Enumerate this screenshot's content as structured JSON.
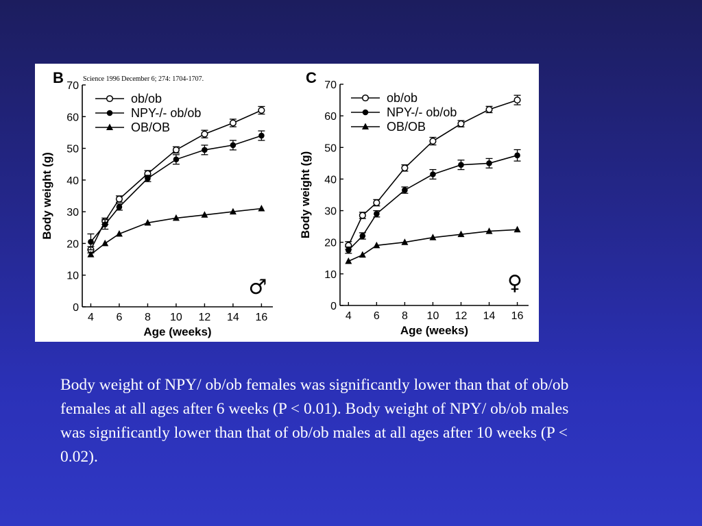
{
  "citation": "Science 1996 December 6; 274: 1704-1707.",
  "caption": "Body weight of NPY/ ob/ob females was significantly lower than that of ob/ob females at all ages after 6 weeks (P < 0.01). Body weight of NPY/ ob/ob males was significantly lower than that of ob/ob males at all ages after 10 weeks (P < 0.02).",
  "chart_data": [
    {
      "type": "line",
      "panel_label": "B",
      "sex_symbol": "♂",
      "xlabel": "Age (weeks)",
      "ylabel": "Body weight (g)",
      "xlim": [
        3.4,
        16.8
      ],
      "ylim": [
        0,
        70
      ],
      "xticks": [
        4,
        6,
        8,
        10,
        12,
        14,
        16
      ],
      "yticks": [
        0,
        10,
        20,
        30,
        40,
        50,
        60,
        70
      ],
      "legend_position": "top-left",
      "series": [
        {
          "name": "ob/ob",
          "marker": "open-circle",
          "x": [
            4,
            5,
            6,
            8,
            10,
            12,
            14,
            16
          ],
          "y": [
            18,
            27,
            34,
            42,
            49.5,
            54.5,
            58,
            62
          ],
          "err": [
            1,
            1,
            1,
            1,
            1,
            1.2,
            1.2,
            1.2
          ]
        },
        {
          "name": "NPY-/- ob/ob",
          "marker": "filled-circle",
          "x": [
            4,
            5,
            6,
            8,
            10,
            12,
            14,
            16
          ],
          "y": [
            20.5,
            26,
            31.5,
            40.5,
            46.5,
            49.5,
            51,
            54
          ],
          "err": [
            2.5,
            1.5,
            1,
            1,
            1.5,
            1.5,
            1.5,
            1.5
          ]
        },
        {
          "name": "OB/OB",
          "marker": "filled-triangle",
          "x": [
            4,
            5,
            6,
            8,
            10,
            12,
            14,
            16
          ],
          "y": [
            16.5,
            20,
            23,
            26.5,
            28,
            29,
            30,
            31
          ],
          "err": [
            0,
            0,
            0,
            0,
            0,
            0,
            0,
            0
          ]
        }
      ]
    },
    {
      "type": "line",
      "panel_label": "C",
      "sex_symbol": "♀",
      "xlabel": "Age (weeks)",
      "ylabel": "Body weight (g)",
      "xlim": [
        3.4,
        16.8
      ],
      "ylim": [
        0,
        70
      ],
      "xticks": [
        4,
        6,
        8,
        10,
        12,
        14,
        16
      ],
      "yticks": [
        0,
        10,
        20,
        30,
        40,
        50,
        60,
        70
      ],
      "legend_position": "top-left",
      "series": [
        {
          "name": "ob/ob",
          "marker": "open-circle",
          "x": [
            4,
            5,
            6,
            8,
            10,
            12,
            14,
            16
          ],
          "y": [
            19,
            28.5,
            32.5,
            43.5,
            52,
            57.5,
            62,
            65
          ],
          "err": [
            1.2,
            1,
            1,
            1,
            1.2,
            1,
            1,
            1.5
          ]
        },
        {
          "name": "NPY-/- ob/ob",
          "marker": "filled-circle",
          "x": [
            4,
            5,
            6,
            8,
            10,
            12,
            14,
            16
          ],
          "y": [
            17.5,
            22,
            29,
            36.5,
            41.5,
            44.5,
            45,
            47.5
          ],
          "err": [
            1,
            1,
            1,
            1,
            1.5,
            1.5,
            1.5,
            1.8
          ]
        },
        {
          "name": "OB/OB",
          "marker": "filled-triangle",
          "x": [
            4,
            5,
            6,
            8,
            10,
            12,
            14,
            16
          ],
          "y": [
            14,
            16,
            19,
            20,
            21.5,
            22.5,
            23.5,
            24
          ],
          "err": [
            0,
            0,
            0,
            0,
            0,
            0,
            0,
            0
          ]
        }
      ]
    }
  ]
}
